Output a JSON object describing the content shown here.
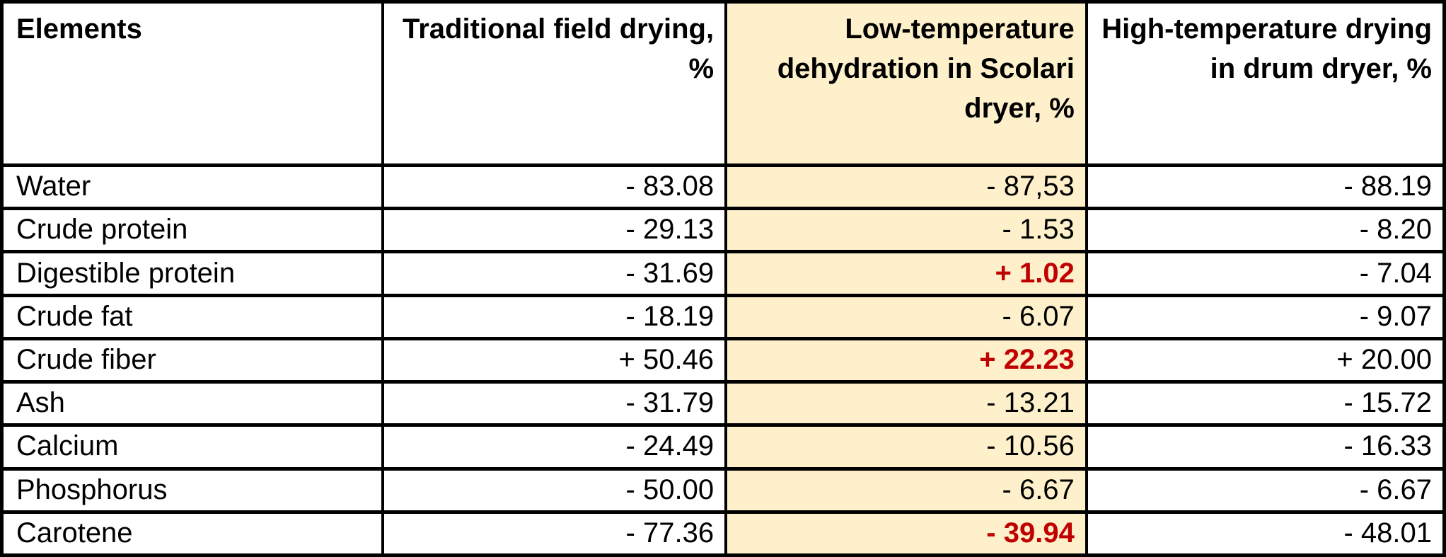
{
  "table": {
    "columns": [
      {
        "label": "Elements",
        "highlighted": false
      },
      {
        "label": "Traditional field drying, %",
        "highlighted": false
      },
      {
        "label": "Low-temperature dehydration in Scolari dryer, %",
        "highlighted": true
      },
      {
        "label": "High-temperature drying in drum dryer, %",
        "highlighted": false
      }
    ],
    "rows": [
      {
        "element": "Water",
        "traditional": "- 83.08",
        "low_temp": "- 87,53",
        "high_temp": "- 88.19",
        "low_temp_emphasis": false
      },
      {
        "element": "Crude protein",
        "traditional": "- 29.13",
        "low_temp": "- 1.53",
        "high_temp": "- 8.20",
        "low_temp_emphasis": false
      },
      {
        "element": "Digestible protein",
        "traditional": "- 31.69",
        "low_temp": "+ 1.02",
        "high_temp": "- 7.04",
        "low_temp_emphasis": true
      },
      {
        "element": "Crude fat",
        "traditional": "- 18.19",
        "low_temp": "- 6.07",
        "high_temp": "- 9.07",
        "low_temp_emphasis": false
      },
      {
        "element": "Crude fiber",
        "traditional": "+ 50.46",
        "low_temp": "+ 22.23",
        "high_temp": "+ 20.00",
        "low_temp_emphasis": true
      },
      {
        "element": "Ash",
        "traditional": "- 31.79",
        "low_temp": "- 13.21",
        "high_temp": "- 15.72",
        "low_temp_emphasis": false
      },
      {
        "element": "Calcium",
        "traditional": "- 24.49",
        "low_temp": "- 10.56",
        "high_temp": "- 16.33",
        "low_temp_emphasis": false
      },
      {
        "element": "Phosphorus",
        "traditional": "- 50.00",
        "low_temp": "- 6.67",
        "high_temp": "- 6.67",
        "low_temp_emphasis": false
      },
      {
        "element": "Carotene",
        "traditional": "- 77.36",
        "low_temp": "- 39.94",
        "high_temp": "- 48.01",
        "low_temp_emphasis": true
      }
    ]
  },
  "colors": {
    "highlight_column_bg": "#FDF0CA",
    "emphasis_text": "#C00000",
    "border": "#000000",
    "text": "#000000",
    "background": "#FFFFFF"
  }
}
